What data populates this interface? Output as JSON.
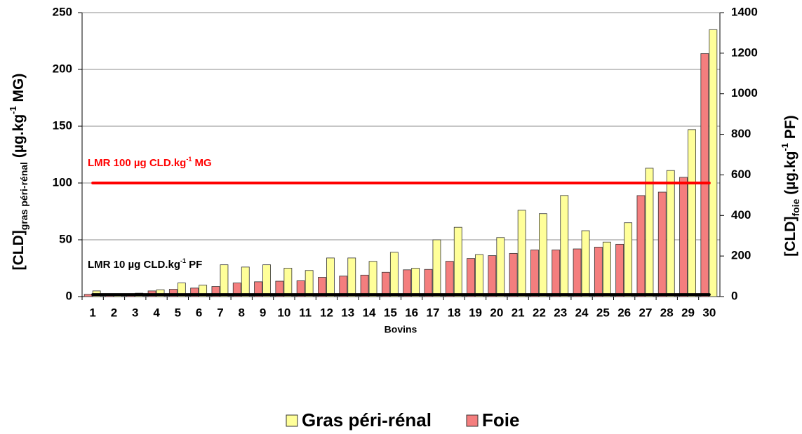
{
  "chart_data": {
    "type": "bar",
    "xlabel": "Bovins",
    "ylabel": [
      {
        "text": "[CLD]",
        "style": "normal"
      },
      {
        "text": "gras péri-rénal",
        "style": "sub"
      },
      {
        "text": "  (µg.kg",
        "style": "normal"
      },
      {
        "text": "-1",
        "style": "sup"
      },
      {
        "text": " MG)",
        "style": "normal"
      }
    ],
    "y2label": [
      {
        "text": "[CLD]",
        "style": "normal"
      },
      {
        "text": "foie",
        "style": "sub"
      },
      {
        "text": "  (µg.kg",
        "style": "normal"
      },
      {
        "text": "-1",
        "style": "sup"
      },
      {
        "text": " PF)",
        "style": "normal"
      }
    ],
    "categories": [
      "1",
      "2",
      "3",
      "4",
      "5",
      "6",
      "7",
      "8",
      "9",
      "10",
      "11",
      "12",
      "13",
      "14",
      "15",
      "16",
      "17",
      "18",
      "19",
      "20",
      "21",
      "22",
      "23",
      "24",
      "25",
      "26",
      "27",
      "28",
      "29",
      "30"
    ],
    "series": [
      {
        "name": "Gras péri-rénal",
        "color": "#ffff99",
        "axis": "y",
        "values": [
          5,
          1,
          3,
          6,
          12,
          10,
          28,
          26,
          28,
          25,
          23,
          34,
          34,
          31,
          39,
          25,
          50,
          61,
          37,
          52,
          76,
          73,
          89,
          58,
          48,
          65,
          113,
          111,
          147,
          235
        ]
      },
      {
        "name": "Foie",
        "color": "#f47e7e",
        "axis": "y2",
        "values": [
          11,
          6,
          11,
          28,
          36,
          42,
          50,
          67,
          73,
          76,
          78,
          95,
          101,
          106,
          120,
          132,
          134,
          174,
          188,
          202,
          213,
          230,
          230,
          235,
          244,
          258,
          498,
          515,
          588,
          1198
        ]
      }
    ],
    "reference_lines": [
      {
        "value": 100,
        "axis": "y",
        "color": "#ff0000",
        "label": [
          {
            "text": "LMR 100 µg CLD.kg",
            "style": "normal"
          },
          {
            "text": "-1",
            "style": "sup"
          },
          {
            "text": " MG",
            "style": "normal"
          }
        ]
      },
      {
        "value": 10,
        "axis": "y2",
        "color": "#000000",
        "label": [
          {
            "text": "LMR 10 µg CLD.kg",
            "style": "normal"
          },
          {
            "text": "-1",
            "style": "sup"
          },
          {
            "text": " PF",
            "style": "normal"
          }
        ]
      }
    ],
    "ylim": [
      0,
      250
    ],
    "yticks": [
      0,
      50,
      100,
      150,
      200,
      250
    ],
    "y2lim": [
      0,
      1400
    ],
    "y2ticks": [
      0,
      200,
      400,
      600,
      800,
      1000,
      1200,
      1400
    ],
    "grid": true,
    "legend": "bottom"
  }
}
